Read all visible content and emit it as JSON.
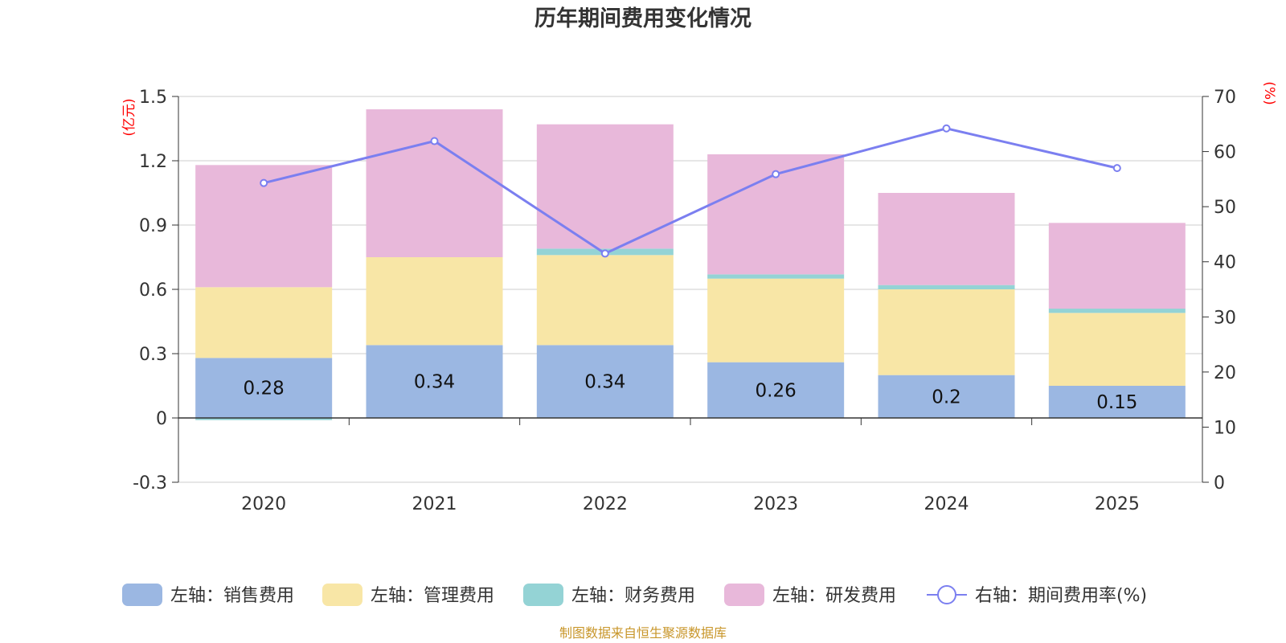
{
  "chart_data": {
    "type": "bar",
    "stacked": true,
    "title": "历年期间费用变化情况",
    "categories": [
      "2020",
      "2021",
      "2022",
      "2023",
      "2024",
      "2025"
    ],
    "left_axis": {
      "unit": "(亿元)",
      "ylim": [
        -0.3,
        1.5
      ],
      "ticks": [
        -0.3,
        0,
        0.3,
        0.6,
        0.9,
        1.2,
        1.5
      ],
      "tick_labels": [
        "-0.3",
        "0",
        "0.3",
        "0.6",
        "0.9",
        "1.2",
        "1.5"
      ]
    },
    "right_axis": {
      "unit": "(%)",
      "ylim": [
        0,
        70
      ],
      "ticks": [
        0,
        10,
        20,
        30,
        40,
        50,
        60,
        70
      ],
      "tick_labels": [
        "0",
        "10",
        "20",
        "30",
        "40",
        "50",
        "60",
        "70"
      ]
    },
    "series": [
      {
        "name": "左轴：销售费用",
        "axis": "left",
        "kind": "bar",
        "color": "#9bb7e2",
        "values": [
          0.28,
          0.34,
          0.34,
          0.26,
          0.2,
          0.15
        ],
        "labels": [
          "0.28",
          "0.34",
          "0.34",
          "0.26",
          "0.2",
          "0.15"
        ]
      },
      {
        "name": "左轴：管理费用",
        "axis": "left",
        "kind": "bar",
        "color": "#f8e6a6",
        "values": [
          0.33,
          0.41,
          0.42,
          0.39,
          0.4,
          0.34
        ]
      },
      {
        "name": "左轴：财务费用",
        "axis": "left",
        "kind": "bar",
        "color": "#94d3d5",
        "values": [
          -0.01,
          0.0,
          0.03,
          0.02,
          0.02,
          0.02
        ]
      },
      {
        "name": "左轴：研发费用",
        "axis": "left",
        "kind": "bar",
        "color": "#e8b8da",
        "values": [
          0.57,
          0.69,
          0.58,
          0.56,
          0.43,
          0.4
        ]
      },
      {
        "name": "右轴：期间费用率(%)",
        "axis": "right",
        "kind": "line",
        "color": "#7b7ff0",
        "values": [
          54.3,
          61.9,
          41.5,
          55.9,
          64.2,
          57.0
        ]
      }
    ]
  },
  "footer": {
    "source": "制图数据来自恒生聚源数据库"
  }
}
